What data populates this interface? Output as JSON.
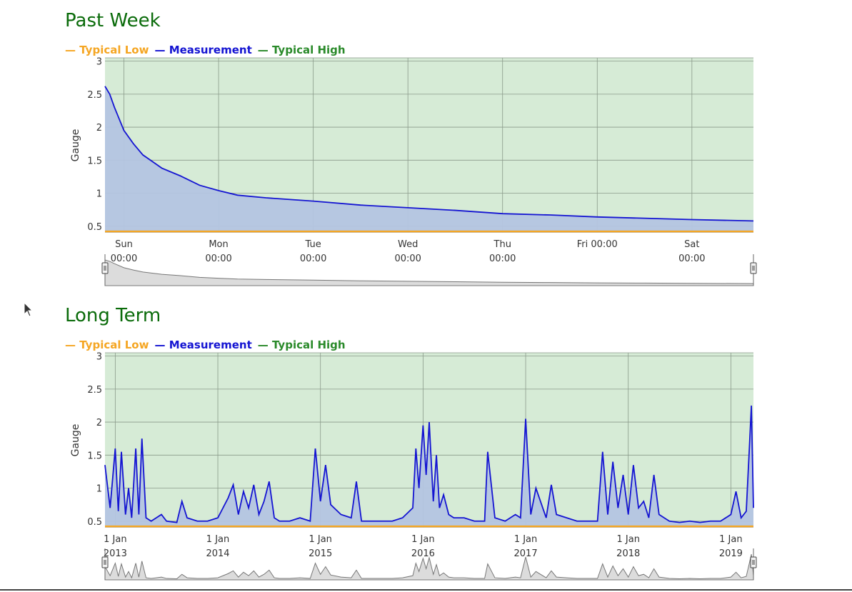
{
  "charts": [
    {
      "title": "Past Week",
      "legend": [
        {
          "label": "Typical Low",
          "color": "#f5a623"
        },
        {
          "label": "Measurement",
          "color": "#1414d2"
        },
        {
          "label": "Typical High",
          "color": "#2a8a2a"
        }
      ],
      "ylabel": "Gauge",
      "yticks": [
        "0.5",
        "1",
        "1.5",
        "2",
        "2.5",
        "3"
      ],
      "xticks": [
        {
          "line1": "Sun",
          "line2": "00:00"
        },
        {
          "line1": "Mon",
          "line2": "00:00"
        },
        {
          "line1": "Tue",
          "line2": "00:00"
        },
        {
          "line1": "Wed",
          "line2": "00:00"
        },
        {
          "line1": "Thu",
          "line2": "00:00"
        },
        {
          "line1": "Fri 00:00",
          "line2": ""
        },
        {
          "line1": "Sat",
          "line2": "00:00"
        }
      ]
    },
    {
      "title": "Long Term",
      "legend": [
        {
          "label": "Typical Low",
          "color": "#f5a623"
        },
        {
          "label": "Measurement",
          "color": "#1414d2"
        },
        {
          "label": "Typical High",
          "color": "#2a8a2a"
        }
      ],
      "ylabel": "Gauge",
      "yticks": [
        "0.5",
        "1",
        "1.5",
        "2",
        "2.5",
        "3"
      ],
      "xticks": [
        {
          "line1": "1 Jan",
          "line2": "2013"
        },
        {
          "line1": "1 Jan",
          "line2": "2014"
        },
        {
          "line1": "1 Jan",
          "line2": "2015"
        },
        {
          "line1": "1 Jan",
          "line2": "2016"
        },
        {
          "line1": "1 Jan",
          "line2": "2017"
        },
        {
          "line1": "1 Jan",
          "line2": "2018"
        },
        {
          "line1": "1 Jan",
          "line2": "2019"
        }
      ]
    }
  ],
  "chart_data": [
    {
      "type": "line",
      "title": "Past Week",
      "ylabel": "Gauge",
      "ylim": [
        0.4,
        3.05
      ],
      "x_unit": "days since Sun 00:00",
      "xlim": [
        -0.2,
        6.65
      ],
      "typical_low": 0.42,
      "typical_high": 3.05,
      "series": [
        {
          "name": "Measurement",
          "color": "#1414d2",
          "x": [
            -0.2,
            -0.15,
            -0.1,
            0.0,
            0.1,
            0.2,
            0.3,
            0.4,
            0.6,
            0.8,
            1.0,
            1.2,
            1.5,
            2.0,
            2.5,
            3.0,
            3.5,
            4.0,
            4.5,
            5.0,
            5.5,
            6.0,
            6.65
          ],
          "y": [
            2.62,
            2.5,
            2.3,
            1.95,
            1.75,
            1.58,
            1.48,
            1.38,
            1.26,
            1.12,
            1.04,
            0.97,
            0.93,
            0.88,
            0.82,
            0.78,
            0.74,
            0.69,
            0.67,
            0.64,
            0.62,
            0.6,
            0.58
          ]
        }
      ]
    },
    {
      "type": "line",
      "title": "Long Term",
      "ylabel": "Gauge",
      "ylim": [
        0.4,
        3.05
      ],
      "x_unit": "year",
      "xlim": [
        2012.9,
        2019.22
      ],
      "typical_low": 0.42,
      "typical_high": 3.05,
      "series": [
        {
          "name": "Measurement",
          "color": "#1414d2",
          "x": [
            2012.9,
            2012.95,
            2013.0,
            2013.03,
            2013.06,
            2013.1,
            2013.13,
            2013.16,
            2013.2,
            2013.23,
            2013.26,
            2013.3,
            2013.35,
            2013.4,
            2013.45,
            2013.5,
            2013.6,
            2013.65,
            2013.7,
            2013.8,
            2013.9,
            2014.0,
            2014.1,
            2014.15,
            2014.2,
            2014.25,
            2014.3,
            2014.35,
            2014.4,
            2014.45,
            2014.5,
            2014.55,
            2014.6,
            2014.7,
            2014.8,
            2014.9,
            2014.95,
            2015.0,
            2015.05,
            2015.1,
            2015.2,
            2015.3,
            2015.35,
            2015.4,
            2015.5,
            2015.6,
            2015.7,
            2015.8,
            2015.9,
            2015.93,
            2015.96,
            2016.0,
            2016.03,
            2016.06,
            2016.1,
            2016.13,
            2016.16,
            2016.2,
            2016.25,
            2016.3,
            2016.4,
            2016.5,
            2016.6,
            2016.63,
            2016.7,
            2016.8,
            2016.9,
            2016.95,
            2017.0,
            2017.05,
            2017.1,
            2017.2,
            2017.25,
            2017.3,
            2017.4,
            2017.5,
            2017.6,
            2017.7,
            2017.75,
            2017.8,
            2017.85,
            2017.9,
            2017.95,
            2018.0,
            2018.05,
            2018.1,
            2018.15,
            2018.2,
            2018.25,
            2018.3,
            2018.4,
            2018.5,
            2018.6,
            2018.7,
            2018.8,
            2018.9,
            2019.0,
            2019.05,
            2019.1,
            2019.15,
            2019.18,
            2019.2,
            2019.22
          ],
          "y": [
            1.35,
            0.7,
            1.6,
            0.65,
            1.55,
            0.6,
            1.0,
            0.55,
            1.6,
            0.6,
            1.75,
            0.55,
            0.5,
            0.55,
            0.6,
            0.5,
            0.48,
            0.8,
            0.55,
            0.5,
            0.5,
            0.55,
            0.85,
            1.05,
            0.6,
            0.95,
            0.7,
            1.05,
            0.6,
            0.8,
            1.1,
            0.55,
            0.5,
            0.5,
            0.55,
            0.5,
            1.6,
            0.8,
            1.35,
            0.75,
            0.6,
            0.55,
            1.1,
            0.5,
            0.5,
            0.5,
            0.5,
            0.55,
            0.7,
            1.6,
            1.0,
            1.95,
            1.2,
            2.0,
            0.8,
            1.5,
            0.7,
            0.9,
            0.6,
            0.55,
            0.55,
            0.5,
            0.5,
            1.55,
            0.55,
            0.5,
            0.6,
            0.55,
            2.05,
            0.6,
            1.0,
            0.55,
            1.05,
            0.6,
            0.55,
            0.5,
            0.5,
            0.5,
            1.55,
            0.6,
            1.4,
            0.7,
            1.2,
            0.6,
            1.35,
            0.7,
            0.8,
            0.55,
            1.2,
            0.6,
            0.5,
            0.48,
            0.5,
            0.48,
            0.5,
            0.5,
            0.6,
            0.95,
            0.55,
            0.65,
            1.6,
            2.25,
            0.7
          ]
        }
      ]
    }
  ]
}
